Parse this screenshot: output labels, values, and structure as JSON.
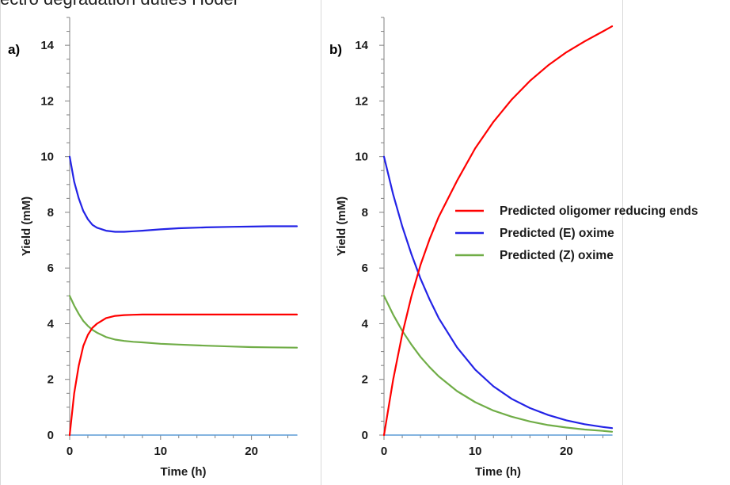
{
  "caption_fragment": "ectro degradation duties Hodel",
  "colors": {
    "oligomer": "#ff0000",
    "e_oxime": "#2323e6",
    "z_oxime": "#70ad47",
    "baseline": "#5b9bd5",
    "axis": "#808080"
  },
  "legend": [
    {
      "label": "Predicted oligomer reducing ends",
      "series": "oligomer"
    },
    {
      "label": "Predicted (E) oxime",
      "series": "e_oxime"
    },
    {
      "label": "Predicted (Z) oxime",
      "series": "z_oxime"
    }
  ],
  "chart_data": [
    {
      "type": "line",
      "panel_label": "a)",
      "xlabel": "Time (h)",
      "ylabel": "Yield (mM)",
      "xlim": [
        0,
        25
      ],
      "ylim": [
        0,
        15
      ],
      "xticks": [
        0,
        10,
        20
      ],
      "yticks": [
        0,
        2,
        4,
        6,
        8,
        10,
        12,
        14
      ],
      "x": [
        0,
        0.5,
        1,
        1.5,
        2,
        2.5,
        3,
        4,
        5,
        6,
        7,
        8,
        10,
        12,
        15,
        18,
        20,
        22,
        25
      ],
      "series": [
        {
          "key": "oligomer",
          "values": [
            0,
            1.5,
            2.5,
            3.2,
            3.6,
            3.85,
            4.0,
            4.2,
            4.28,
            4.31,
            4.32,
            4.33,
            4.33,
            4.33,
            4.33,
            4.33,
            4.33,
            4.33,
            4.33
          ]
        },
        {
          "key": "e_oxime",
          "values": [
            10,
            9.1,
            8.5,
            8.05,
            7.75,
            7.55,
            7.45,
            7.34,
            7.3,
            7.3,
            7.32,
            7.34,
            7.39,
            7.43,
            7.46,
            7.48,
            7.49,
            7.5,
            7.5
          ]
        },
        {
          "key": "z_oxime",
          "values": [
            5,
            4.65,
            4.35,
            4.1,
            3.92,
            3.78,
            3.68,
            3.52,
            3.43,
            3.38,
            3.35,
            3.33,
            3.28,
            3.25,
            3.21,
            3.18,
            3.16,
            3.15,
            3.14
          ]
        },
        {
          "key": "baseline",
          "values": [
            0,
            0,
            0,
            0,
            0,
            0,
            0,
            0,
            0,
            0,
            0,
            0,
            0,
            0,
            0,
            0,
            0,
            0,
            0
          ]
        }
      ]
    },
    {
      "type": "line",
      "panel_label": "b)",
      "xlabel": "Time (h)",
      "ylabel": "Yield (mM)",
      "xlim": [
        0,
        25
      ],
      "ylim": [
        0,
        15
      ],
      "xticks": [
        0,
        10,
        20
      ],
      "yticks": [
        0,
        2,
        4,
        6,
        8,
        10,
        12,
        14
      ],
      "x": [
        0,
        1,
        2,
        3,
        4,
        5,
        6,
        8,
        10,
        12,
        14,
        16,
        18,
        20,
        22,
        24,
        25
      ],
      "series": [
        {
          "key": "oligomer",
          "values": [
            0,
            1.98,
            3.62,
            4.98,
            6.11,
            7.04,
            7.84,
            9.13,
            10.3,
            11.25,
            12.05,
            12.72,
            13.28,
            13.75,
            14.14,
            14.5,
            14.68
          ]
        },
        {
          "key": "e_oxime",
          "values": [
            10,
            8.65,
            7.5,
            6.5,
            5.62,
            4.87,
            4.2,
            3.15,
            2.35,
            1.75,
            1.3,
            0.97,
            0.72,
            0.53,
            0.39,
            0.29,
            0.25
          ]
        },
        {
          "key": "z_oxime",
          "values": [
            5,
            4.33,
            3.75,
            3.25,
            2.81,
            2.44,
            2.11,
            1.58,
            1.18,
            0.88,
            0.66,
            0.49,
            0.36,
            0.27,
            0.2,
            0.15,
            0.12
          ]
        },
        {
          "key": "baseline",
          "values": [
            0,
            0,
            0,
            0,
            0,
            0,
            0,
            0,
            0,
            0,
            0,
            0,
            0,
            0,
            0,
            0,
            0
          ]
        }
      ]
    }
  ]
}
